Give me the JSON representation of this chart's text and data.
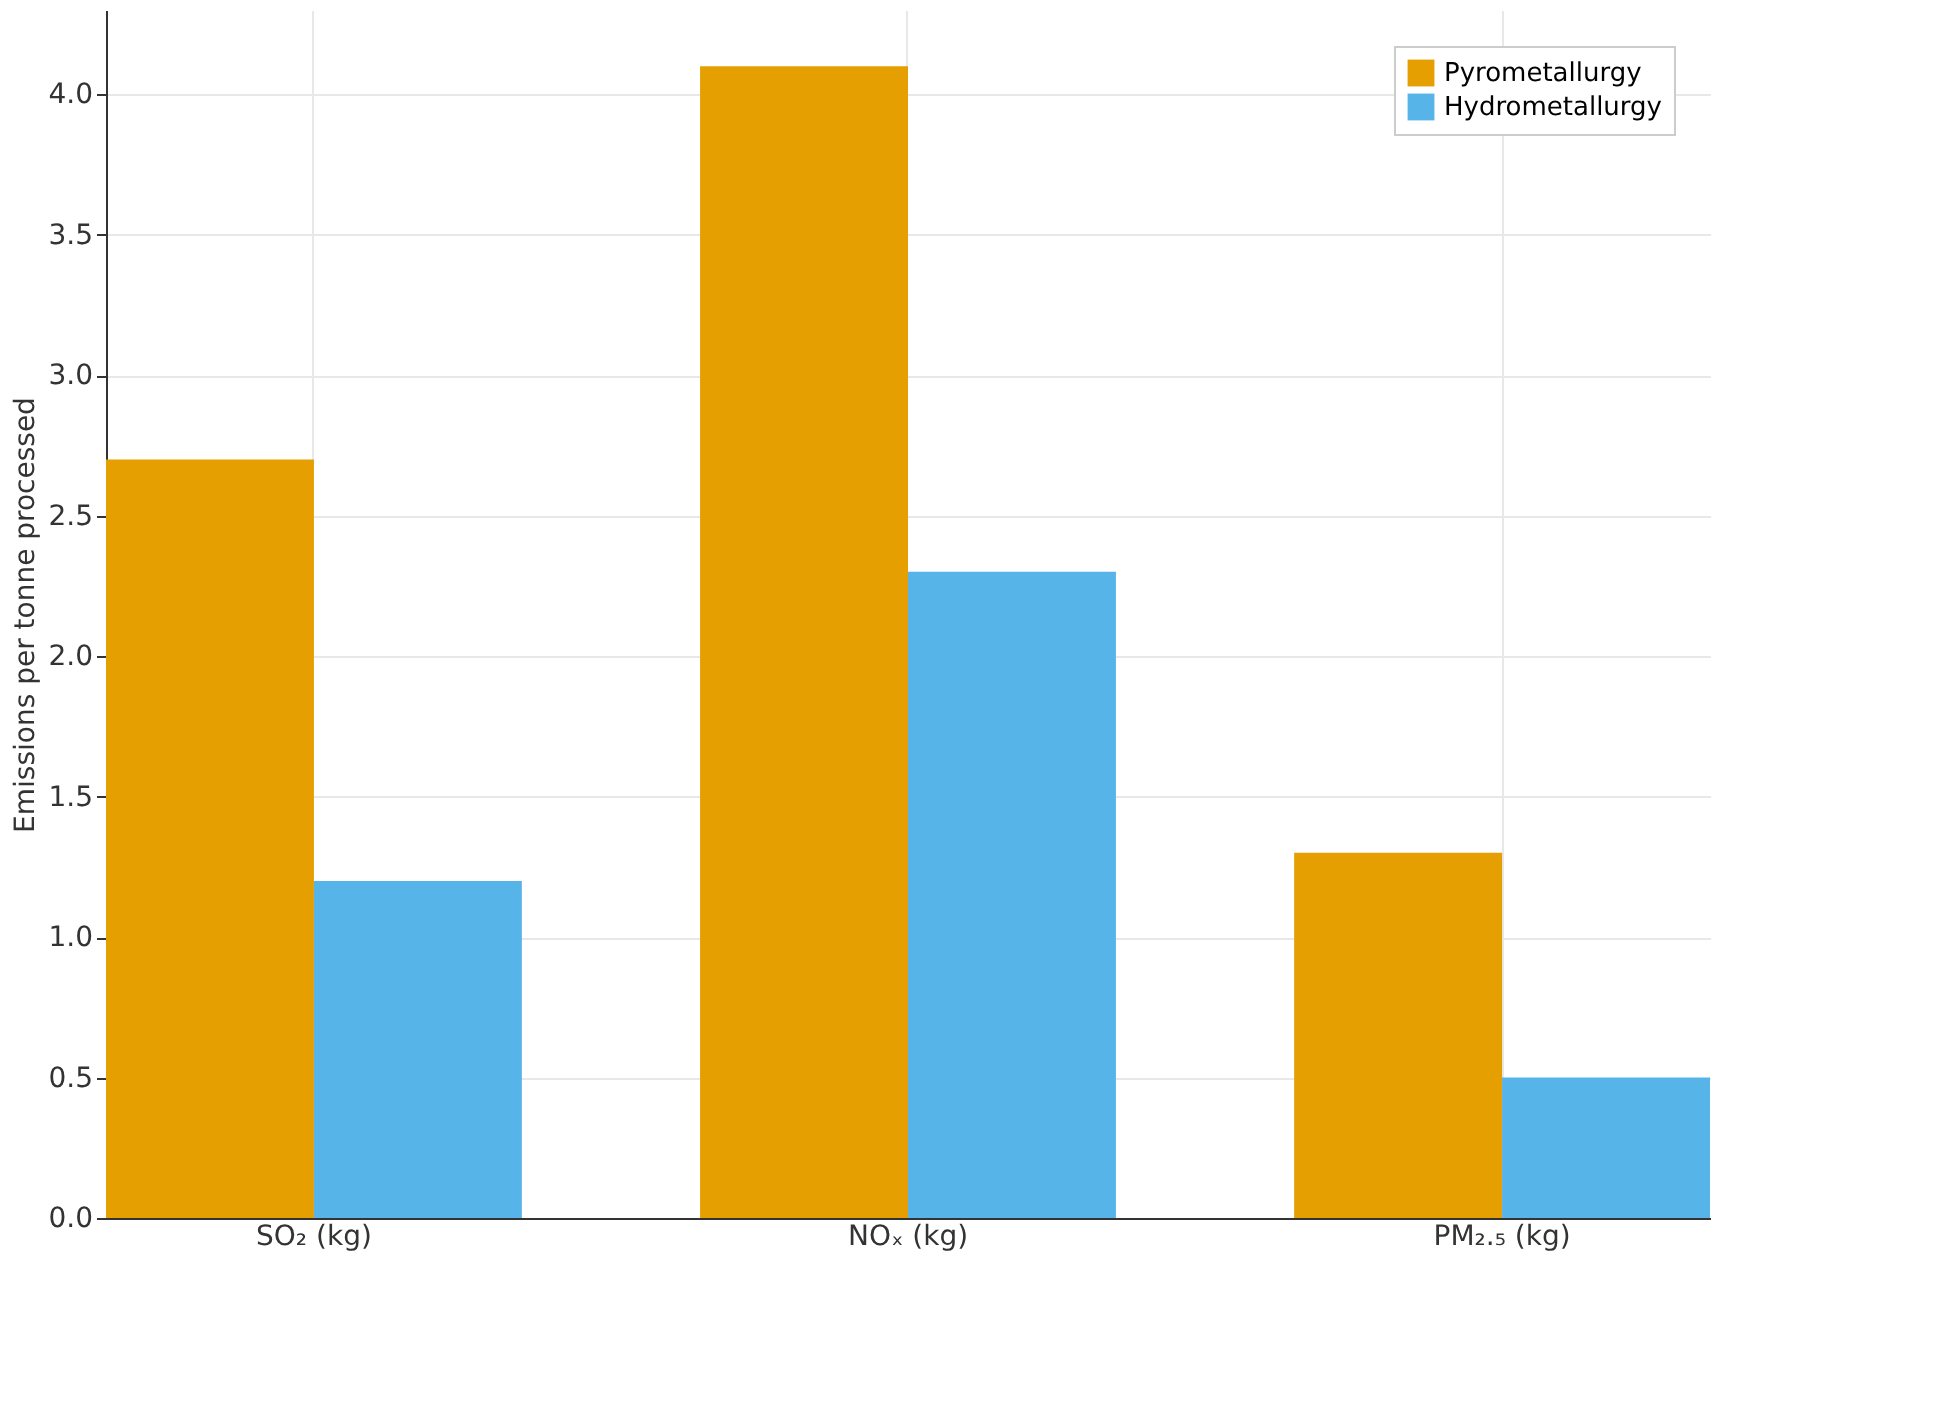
{
  "chart_data": {
    "type": "bar",
    "ylabel": "Emissions per tonne processed",
    "categories": [
      "SO₂ (kg)",
      "NOₓ (kg)",
      "PM₂.₅ (kg)"
    ],
    "series": [
      {
        "name": "Pyrometallurgy",
        "color": "#e69f00",
        "values": [
          2.7,
          4.1,
          1.3
        ]
      },
      {
        "name": "Hydrometallurgy",
        "color": "#56b4e9",
        "values": [
          1.2,
          2.3,
          0.5
        ]
      }
    ],
    "ylim": [
      0,
      4.3
    ],
    "yticks": [
      {
        "value": 0,
        "label": "0.0"
      },
      0.5,
      {
        "value": 1,
        "label": "1.0"
      },
      1.5,
      {
        "value": 2,
        "label": "2.0"
      },
      2.5,
      {
        "value": 3,
        "label": "3.0"
      },
      3.5,
      {
        "value": 4,
        "label": "4.0"
      }
    ],
    "grid": true,
    "legend": "top right"
  }
}
